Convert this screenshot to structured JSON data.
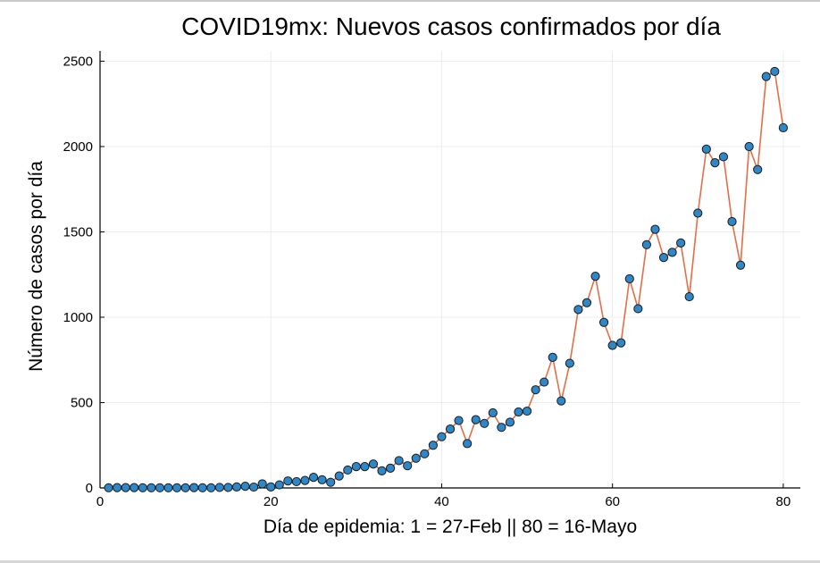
{
  "chart_data": {
    "type": "line",
    "title": "COVID19mx: Nuevos casos confirmados por día",
    "xlabel": "Día de epidemia: 1 = 27-Feb || 80 = 16-Mayo",
    "ylabel": "Número de casos por día",
    "xlim": [
      0,
      82
    ],
    "ylim": [
      0,
      2560
    ],
    "xticks": [
      0,
      20,
      40,
      60,
      80
    ],
    "yticks": [
      0,
      500,
      1000,
      1500,
      2000,
      2500
    ],
    "grid": true,
    "legend": "none",
    "series": [
      {
        "x": [
          1,
          2,
          3,
          4,
          5,
          6,
          7,
          8,
          9,
          10,
          11,
          12,
          13,
          14,
          15,
          16,
          17,
          18,
          19,
          20,
          21,
          22,
          23,
          24,
          25,
          26,
          27,
          28,
          29,
          30,
          31,
          32,
          33,
          34,
          35,
          36,
          37,
          38,
          39,
          40,
          41,
          42,
          43,
          44,
          45,
          46,
          47,
          48,
          49,
          50,
          51,
          52,
          53,
          54,
          55,
          56,
          57,
          58,
          59,
          60,
          61,
          62,
          63,
          64,
          65,
          66,
          67,
          68,
          69,
          70,
          71,
          72,
          73,
          74,
          75,
          76,
          77,
          78,
          79,
          80
        ],
        "values": [
          1,
          2,
          2,
          2,
          1,
          1,
          1,
          1,
          1,
          1,
          2,
          1,
          1,
          3,
          3,
          6,
          10,
          5,
          24,
          6,
          18,
          41,
          37,
          44,
          62,
          48,
          33,
          70,
          105,
          125,
          125,
          140,
          100,
          116,
          160,
          130,
          174,
          200,
          250,
          300,
          345,
          395,
          260,
          400,
          378,
          440,
          355,
          385,
          445,
          450,
          575,
          620,
          765,
          510,
          730,
          1045,
          1085,
          1240,
          970,
          835,
          850,
          1225,
          1050,
          1425,
          1515,
          1350,
          1380,
          1435,
          1120,
          1610,
          1985,
          1905,
          1940,
          1560,
          1305,
          2000,
          1865,
          2410,
          2440,
          2110
        ]
      }
    ],
    "colors": {
      "line": "#e26f46",
      "marker_fill": "#2e87c8",
      "marker_stroke": "#1a1a1a",
      "grid": "#ececec",
      "axis": "#000000"
    }
  }
}
